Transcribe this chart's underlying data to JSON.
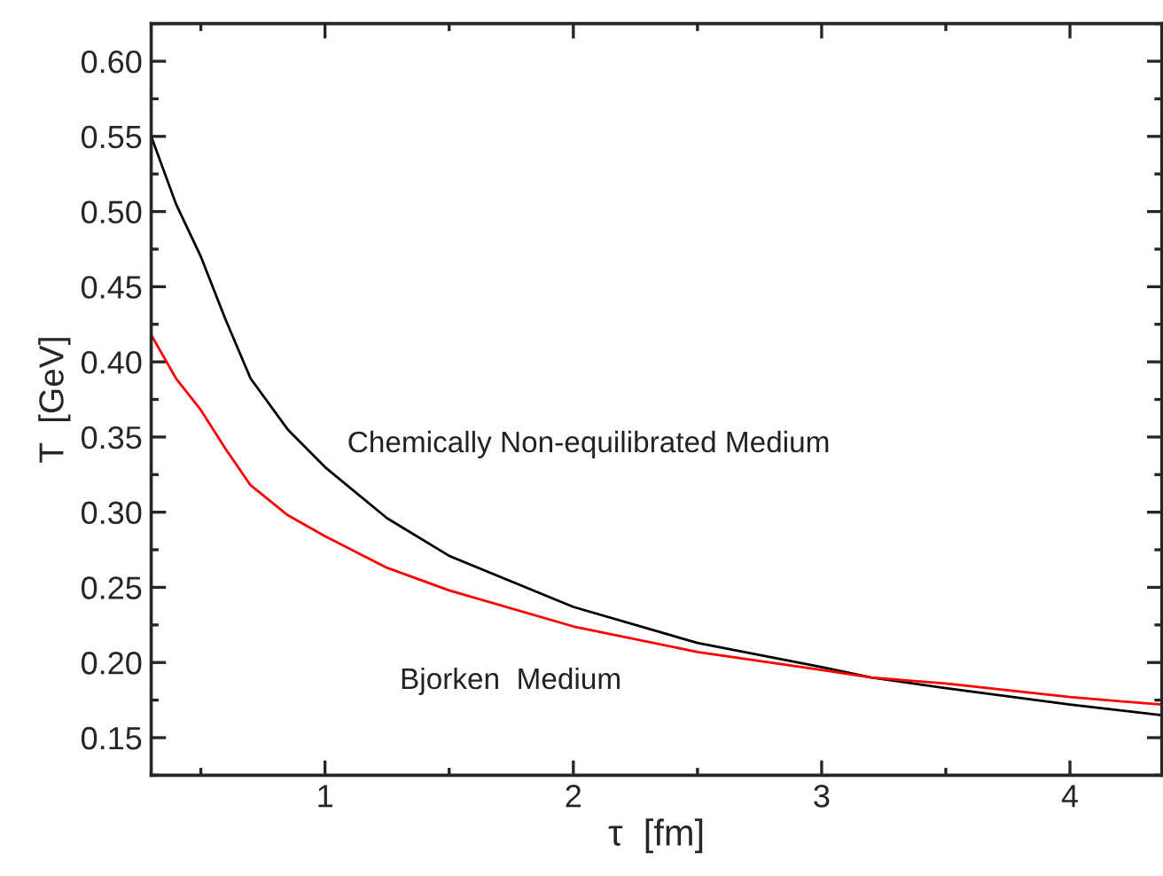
{
  "chart_data": {
    "type": "line",
    "xlabel": "τ  [fm]",
    "ylabel": "T  [GeV]",
    "xlim": [
      0.3,
      4.37
    ],
    "xticks": [
      1,
      2,
      3,
      4
    ],
    "ylim": [
      0.125,
      0.625
    ],
    "yticks": [
      {
        "value": 0.15,
        "label": "0.15"
      },
      {
        "value": 0.2,
        "label": "0.20"
      },
      {
        "value": 0.25,
        "label": "0.25"
      },
      {
        "value": 0.3,
        "label": "0.30"
      },
      {
        "value": 0.35,
        "label": "0.35"
      },
      {
        "value": 0.4,
        "label": "0.40"
      },
      {
        "value": 0.45,
        "label": "0.45"
      },
      {
        "value": 0.5,
        "label": "0.50"
      },
      {
        "value": 0.55,
        "label": "0.55"
      },
      {
        "value": 0.6,
        "label": "0.60"
      }
    ],
    "grid": false,
    "legend": false,
    "marker": "none",
    "line_style": "solid",
    "series": [
      {
        "name": "Chemically Non-equilibrated Medium",
        "color": "#000000",
        "x": [
          0.3,
          0.4,
          0.5,
          0.6,
          0.7,
          0.85,
          1.0,
          1.25,
          1.5,
          2.0,
          2.5,
          3.0,
          3.2,
          3.5,
          4.0,
          4.37
        ],
        "values": [
          0.55,
          0.505,
          0.47,
          0.428,
          0.389,
          0.355,
          0.33,
          0.296,
          0.271,
          0.237,
          0.213,
          0.197,
          0.19,
          0.183,
          0.172,
          0.165
        ]
      },
      {
        "name": "Bjorken  Medium",
        "color": "#ff0000",
        "x": [
          0.3,
          0.4,
          0.5,
          0.6,
          0.7,
          0.85,
          1.0,
          1.25,
          1.5,
          2.0,
          2.5,
          3.0,
          3.2,
          3.5,
          4.0,
          4.37
        ],
        "values": [
          0.418,
          0.389,
          0.368,
          0.342,
          0.318,
          0.298,
          0.284,
          0.263,
          0.248,
          0.224,
          0.207,
          0.195,
          0.19,
          0.186,
          0.177,
          0.172
        ]
      }
    ]
  }
}
